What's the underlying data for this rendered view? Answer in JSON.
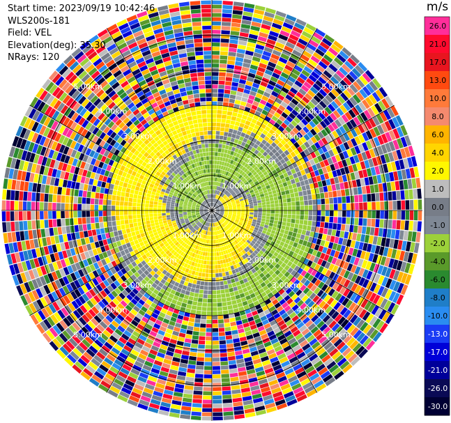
{
  "header": {
    "start_time": "Start time: 2023/09/19 10:42:46",
    "instrument": "WLS200s-181",
    "field": "Field: VEL",
    "elevation": "Elevation(deg): 35.30",
    "nrays": "NRays: 120"
  },
  "colorbar": {
    "unit": "m/s",
    "levels": [
      {
        "value": "26.0",
        "color": "#ff2e9a",
        "text": "#000000"
      },
      {
        "value": "21.0",
        "color": "#ff0a2e",
        "text": "#000000"
      },
      {
        "value": "17.0",
        "color": "#e8151f",
        "text": "#000000"
      },
      {
        "value": "13.0",
        "color": "#ff4a10",
        "text": "#000000"
      },
      {
        "value": "10.0",
        "color": "#ff7a3a",
        "text": "#000000"
      },
      {
        "value": "8.0",
        "color": "#f58a6e",
        "text": "#000000"
      },
      {
        "value": "6.0",
        "color": "#ffb400",
        "text": "#000000"
      },
      {
        "value": "4.0",
        "color": "#ffd500",
        "text": "#000000"
      },
      {
        "value": "2.0",
        "color": "#fff700",
        "text": "#000000"
      },
      {
        "value": "1.0",
        "color": "#bdbdbd",
        "text": "#000000"
      },
      {
        "value": "0.0",
        "color": "#777d88",
        "text": "#000000"
      },
      {
        "value": "-1.0",
        "color": "#7f8895",
        "text": "#000000"
      },
      {
        "value": "-2.0",
        "color": "#9cd13a",
        "text": "#000000"
      },
      {
        "value": "-4.0",
        "color": "#5a9a2a",
        "text": "#000000"
      },
      {
        "value": "-6.0",
        "color": "#2a8a2f",
        "text": "#000000"
      },
      {
        "value": "-8.0",
        "color": "#1f7ec8",
        "text": "#000000"
      },
      {
        "value": "-10.0",
        "color": "#2a8cf0",
        "text": "#000000"
      },
      {
        "value": "-13.0",
        "color": "#1a3cf5",
        "text": "#ffffff"
      },
      {
        "value": "-17.0",
        "color": "#0000d8",
        "text": "#ffffff"
      },
      {
        "value": "-21.0",
        "color": "#00009a",
        "text": "#ffffff"
      },
      {
        "value": "-26.0",
        "color": "#0a0a55",
        "text": "#ffffff"
      },
      {
        "value": "-30.0",
        "color": "#000033",
        "text": "#ffffff"
      }
    ]
  },
  "chart_data": {
    "type": "heatmap",
    "projection": "polar PPI",
    "field": "VEL",
    "units": "m/s",
    "nrays": 120,
    "elevation_deg": 35.3,
    "range_rings_km": [
      1.0,
      2.0,
      3.0,
      4.0,
      5.0
    ],
    "range_ring_labels": [
      "1.00km",
      "2.00km",
      "3.00km",
      "4.00km",
      "5.00km"
    ],
    "max_range_km": 6.0,
    "spoke_interval_deg": 30,
    "inner_pattern": "swirl of positive (yellow, 2 to 6 m/s) and negative (green, -2 to -4 m/s) velocities with grey near-zero band out to ~3 km",
    "outer_pattern": "noisy random velocities across the full colour range beyond ~3 km"
  }
}
